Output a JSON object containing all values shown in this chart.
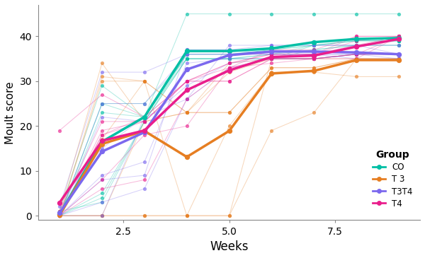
{
  "title": "",
  "xlabel": "Weeks",
  "ylabel": "Moult score",
  "xlim": [
    0.5,
    9.5
  ],
  "ylim": [
    -1,
    47
  ],
  "yticks": [
    0,
    10,
    20,
    30,
    40
  ],
  "xticks": [
    2.5,
    5.0,
    7.5
  ],
  "background_color": "#ffffff",
  "panel_color": "#ffffff",
  "weeks": [
    1,
    2,
    3,
    4,
    5,
    6,
    7,
    8,
    9
  ],
  "groups": {
    "CO": {
      "color": "#00BFA5",
      "individuals": [
        [
          0,
          25,
          25,
          35,
          35,
          35,
          38,
          39,
          39
        ],
        [
          0,
          23,
          22,
          35,
          35,
          36,
          38,
          38,
          39
        ],
        [
          1,
          29,
          22,
          36,
          36,
          37,
          38,
          39,
          39
        ],
        [
          0,
          5,
          21,
          35,
          35,
          36,
          37,
          38,
          38
        ],
        [
          1,
          3,
          21,
          35,
          35,
          35,
          37,
          38,
          38
        ],
        [
          0,
          4,
          21,
          36,
          36,
          37,
          38,
          39,
          39
        ],
        [
          0,
          25,
          22,
          45,
          45,
          45,
          45,
          45,
          45
        ]
      ],
      "means": [
        0.3,
        16.5,
        22.0,
        36.7,
        36.7,
        37.3,
        38.7,
        39.4,
        39.6
      ]
    },
    "T3": {
      "color": "#E67E22",
      "individuals": [
        [
          0,
          31,
          30,
          23,
          34,
          35,
          35,
          36,
          36
        ],
        [
          0,
          30,
          30,
          23,
          32,
          35,
          35,
          35,
          35
        ],
        [
          0,
          0,
          0,
          0,
          0,
          35,
          35,
          36,
          36
        ],
        [
          0,
          17,
          30,
          0,
          20,
          32,
          32,
          31,
          31
        ],
        [
          0,
          0,
          21,
          23,
          23,
          33,
          33,
          35,
          35
        ],
        [
          1,
          34,
          21,
          23,
          23,
          33,
          33,
          35,
          35
        ],
        [
          0,
          0,
          0,
          0,
          0,
          19,
          23,
          35,
          35
        ]
      ],
      "means": [
        0.1,
        16.0,
        18.9,
        13.1,
        18.9,
        31.7,
        32.3,
        34.7,
        34.7
      ]
    },
    "T3T4": {
      "color": "#7B68EE",
      "individuals": [
        [
          0,
          3,
          6,
          26,
          38,
          38,
          38,
          38,
          36
        ],
        [
          0,
          0,
          22,
          26,
          33,
          35,
          35,
          36,
          36
        ],
        [
          3,
          15,
          22,
          37,
          37,
          38,
          38,
          38,
          38
        ],
        [
          0,
          8,
          9,
          37,
          37,
          36,
          36,
          36,
          36
        ],
        [
          0,
          25,
          25,
          36,
          36,
          36,
          36,
          36,
          35
        ],
        [
          0,
          9,
          12,
          34,
          35,
          35,
          35,
          36,
          36
        ],
        [
          2,
          32,
          32,
          36,
          36,
          36,
          36,
          35,
          35
        ],
        [
          0,
          22,
          21,
          29,
          34,
          35,
          35,
          36,
          36
        ]
      ],
      "means": [
        0.6,
        14.3,
        18.6,
        32.6,
        35.8,
        36.6,
        36.6,
        36.4,
        36.0
      ]
    },
    "T4": {
      "color": "#E91E8C",
      "individuals": [
        [
          0,
          19,
          21,
          30,
          33,
          37,
          37,
          40,
          40
        ],
        [
          0,
          18,
          21,
          30,
          30,
          35,
          35,
          36,
          36
        ],
        [
          0,
          6,
          8,
          26,
          33,
          34,
          35,
          35,
          40
        ],
        [
          0,
          8,
          18,
          20,
          33,
          35,
          35,
          36,
          40
        ],
        [
          19,
          27,
          22,
          30,
          30,
          35,
          36,
          38,
          40
        ],
        [
          0,
          18,
          22,
          30,
          34,
          36,
          36,
          39,
          40
        ],
        [
          1,
          21,
          21,
          30,
          34,
          36,
          36,
          40,
          40
        ]
      ],
      "means": [
        2.9,
        16.7,
        19.0,
        28.0,
        32.4,
        35.4,
        35.7,
        37.7,
        39.4
      ]
    }
  },
  "group_order": [
    "CO",
    "T3",
    "T3T4",
    "T4"
  ],
  "legend_labels": {
    "CO": "CO",
    "T3": "T 3",
    "T3T4": "T3T4",
    "T4": "T4"
  }
}
